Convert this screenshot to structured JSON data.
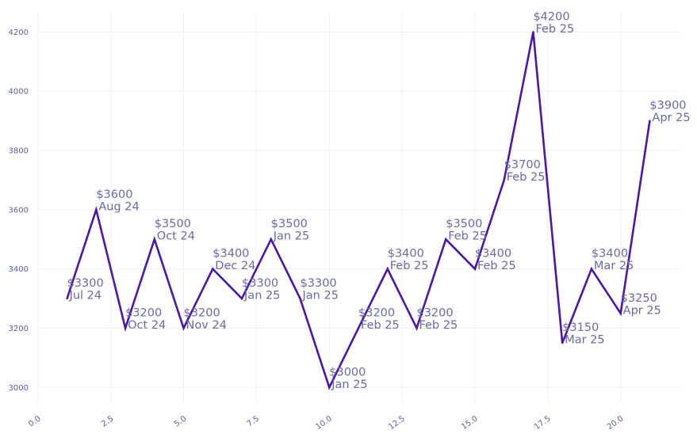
{
  "chart_data": {
    "type": "line",
    "title": "",
    "xlabel": "",
    "ylabel": "",
    "xlim": [
      -0.05,
      22.05
    ],
    "ylim": [
      2950,
      4265
    ],
    "x_ticks": [
      0.0,
      2.5,
      5.0,
      7.5,
      10.0,
      12.5,
      15.0,
      17.5,
      20.0
    ],
    "x_tick_labels": [
      "0.0",
      "2.5",
      "5.0",
      "7.5",
      "10.0",
      "12.5",
      "15.0",
      "17.5",
      "20.0"
    ],
    "y_ticks": [
      3000,
      3200,
      3400,
      3600,
      3800,
      4000,
      4200
    ],
    "y_tick_labels": [
      "3000",
      "3200",
      "3400",
      "3600",
      "3800",
      "4000",
      "4200"
    ],
    "grid": true,
    "series": [
      {
        "color": "#4b17a6",
        "x": [
          1,
          2,
          3,
          4,
          5,
          6,
          7,
          8,
          9,
          10,
          11,
          12,
          13,
          14,
          15,
          16,
          17,
          18,
          19,
          20,
          21
        ],
        "values": [
          3300,
          3600,
          3200,
          3500,
          3200,
          3400,
          3300,
          3500,
          3300,
          3000,
          3200,
          3400,
          3200,
          3500,
          3400,
          3700,
          4200,
          3150,
          3400,
          3250,
          3900
        ],
        "labels": [
          [
            "$3300",
            "Jul 24"
          ],
          [
            "$3600",
            "Aug 24"
          ],
          [
            "$3200",
            "Oct 24"
          ],
          [
            "$3500",
            "Oct 24"
          ],
          [
            "$3200",
            "Nov 24"
          ],
          [
            "$3400",
            "Dec 24"
          ],
          [
            "$3300",
            "Jan 25"
          ],
          [
            "$3500",
            "Jan 25"
          ],
          [
            "$3300",
            "Jan 25"
          ],
          [
            "$3000",
            "Jan 25"
          ],
          [
            "$3200",
            "Feb 25"
          ],
          [
            "$3400",
            "Feb 25"
          ],
          [
            "$3200",
            "Feb 25"
          ],
          [
            "$3500",
            "Feb 25"
          ],
          [
            "$3400",
            "Feb 25"
          ],
          [
            "$3700",
            "Feb 25"
          ],
          [
            "$4200",
            "Feb 25"
          ],
          [
            "$3150",
            "Mar 25"
          ],
          [
            "$3400",
            "Mar 25"
          ],
          [
            "$3250",
            "Apr 25"
          ],
          [
            "$3900",
            "Apr 25"
          ]
        ]
      }
    ]
  }
}
